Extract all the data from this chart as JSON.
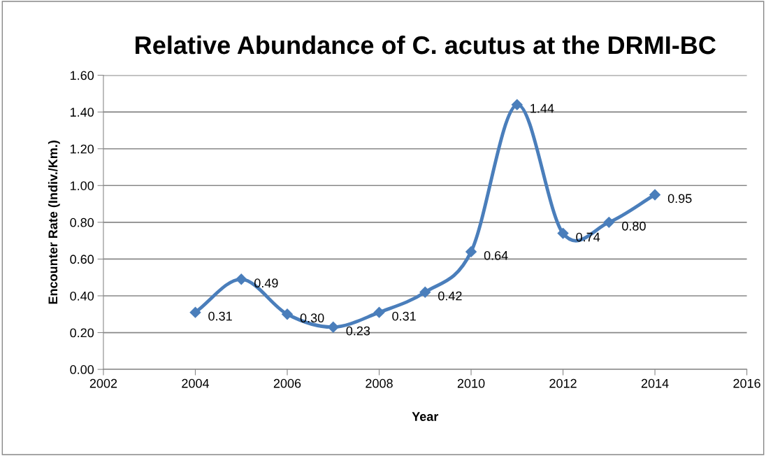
{
  "chart_data": {
    "type": "line",
    "title": "Relative Abundance of C. acutus at the DRMI-BC",
    "xlabel": "Year",
    "ylabel": "Encounter Rate (Indiv./Km.)",
    "x": [
      2004,
      2005,
      2006,
      2007,
      2008,
      2009,
      2010,
      2011,
      2012,
      2013,
      2014
    ],
    "series": [
      {
        "color": "#4a7ebb",
        "values": [
          0.31,
          0.49,
          0.3,
          0.23,
          0.31,
          0.42,
          0.64,
          1.44,
          0.74,
          0.8,
          0.95
        ],
        "value_labels": [
          "0.31",
          "0.49",
          "0.30",
          "0.23",
          "0.31",
          "0.42",
          "0.64",
          "1.44",
          "0.74",
          "0.80",
          "0.95"
        ]
      }
    ],
    "xlim": [
      2002,
      2016
    ],
    "xticks": [
      2002,
      2004,
      2006,
      2008,
      2010,
      2012,
      2014,
      2016
    ],
    "ylim": [
      0,
      1.6
    ],
    "yticks": [
      {
        "value": 0,
        "label": "0.00"
      },
      {
        "value": 0.2,
        "label": "0.20"
      },
      {
        "value": 0.4,
        "label": "0.40"
      },
      {
        "value": 0.6,
        "label": "0.60"
      },
      {
        "value": 0.8,
        "label": "0.80"
      },
      {
        "value": 1.0,
        "label": "1.00"
      },
      {
        "value": 1.2,
        "label": "1.20"
      },
      {
        "value": 1.4,
        "label": "1.40"
      },
      {
        "value": 1.6,
        "label": "1.60"
      }
    ],
    "grid": "y",
    "marker": "diamond",
    "line_style": "solid",
    "legend": false
  }
}
